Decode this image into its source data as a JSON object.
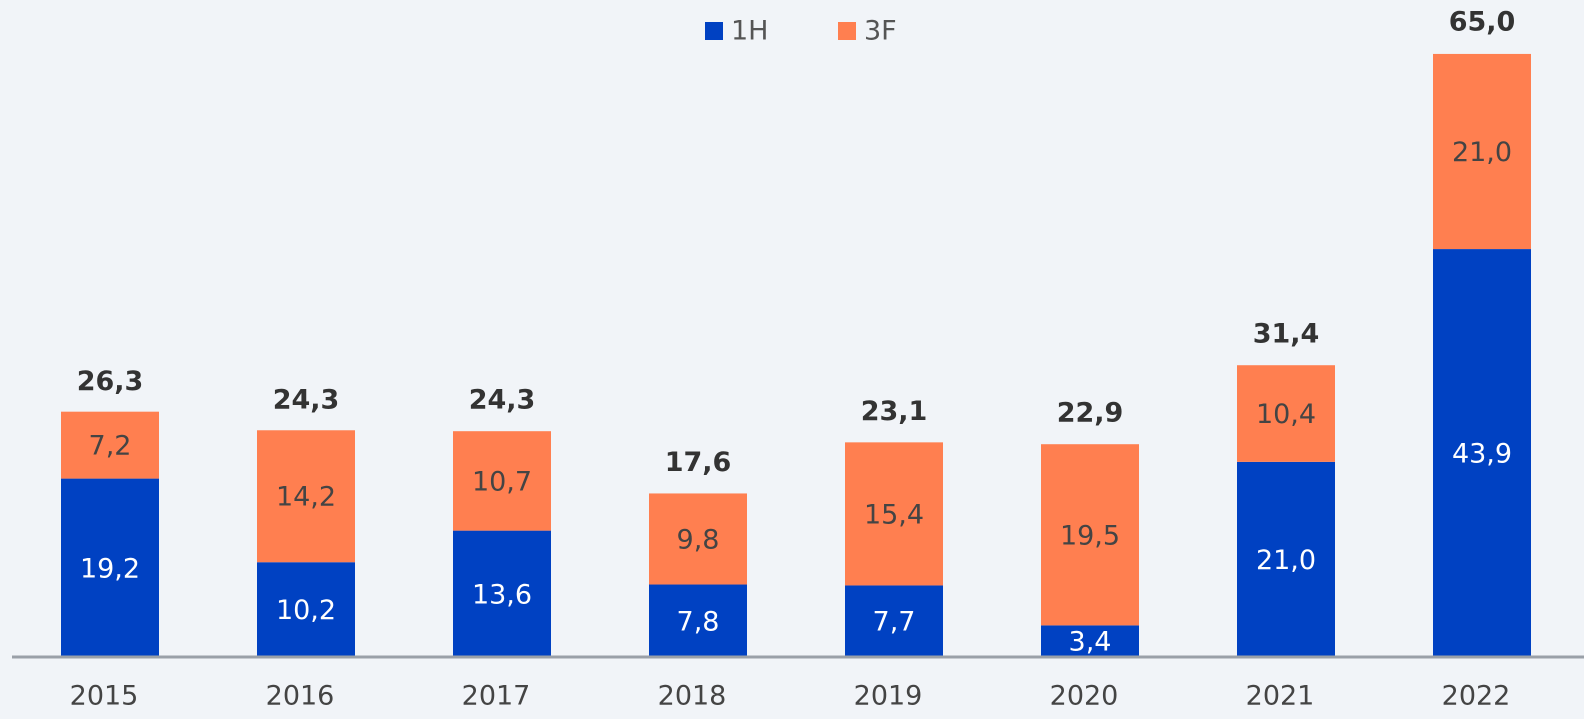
{
  "chart_data": {
    "type": "stacked_bar",
    "categories": [
      "2015",
      "2016",
      "2017",
      "2018",
      "2019",
      "2020",
      "2021",
      "2022"
    ],
    "series": [
      {
        "name": "1H",
        "color": "#0041c2",
        "values": [
          19.2,
          10.2,
          13.6,
          7.8,
          7.7,
          3.4,
          21.0,
          43.9
        ],
        "value_labels": [
          "19,2",
          "10,2",
          "13,6",
          "7,8",
          "7,7",
          "3,4",
          "21,0",
          "43,9"
        ]
      },
      {
        "name": "3F",
        "color": "#ff7f50",
        "values": [
          7.2,
          14.2,
          10.7,
          9.8,
          15.4,
          19.5,
          10.4,
          21.0
        ],
        "value_labels": [
          "7,2",
          "14,2",
          "10,7",
          "9,8",
          "15,4",
          "19,5",
          "10,4",
          "21,0"
        ]
      }
    ],
    "totals": [
      26.3,
      24.3,
      24.3,
      17.6,
      23.1,
      22.9,
      31.4,
      65.0
    ],
    "total_labels": [
      "26,3",
      "24,3",
      "24,3",
      "17,6",
      "23,1",
      "22,9",
      "31,4",
      "65,0"
    ],
    "ylim": [
      0,
      65
    ]
  }
}
